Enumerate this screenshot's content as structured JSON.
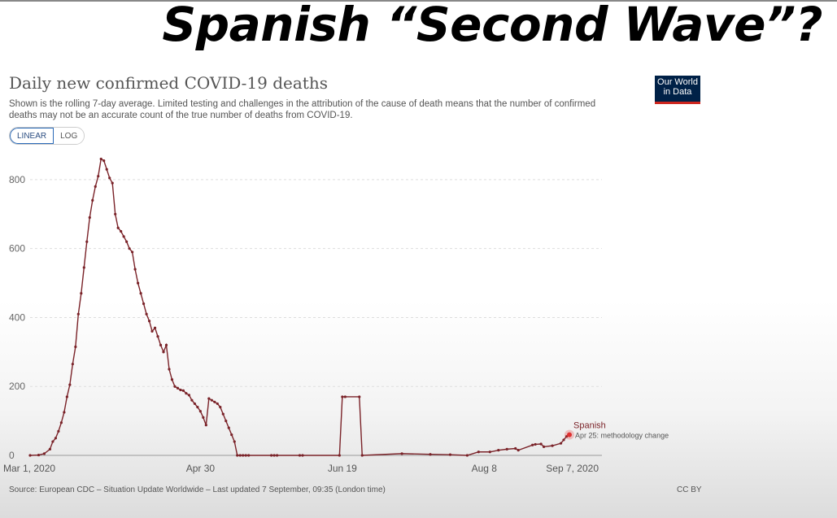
{
  "slide": {
    "title": "Spanish “Second Wave”?"
  },
  "logo": {
    "line1": "Our World",
    "line2": "in Data"
  },
  "scale_toggle": {
    "linear_label": "LINEAR",
    "log_label": "LOG",
    "selected": "LINEAR"
  },
  "colors": {
    "series": "#7a2228",
    "highlight": "#e03030",
    "grid": "#dddddd",
    "logo_bg": "#002147",
    "logo_bar": "#ce261e"
  },
  "footer": {
    "source": "Source: European CDC – Situation Update Worldwide – Last updated 7 September, 09:35 (London time)",
    "license": "CC BY"
  },
  "chart_data": {
    "type": "line",
    "title": "Daily new confirmed COVID-19 deaths",
    "subtitle": "Shown is the rolling 7-day average. Limited testing and challenges in the attribution of the cause of death means that the number of confirmed deaths may not be an accurate count of the true number of deaths from COVID-19.",
    "ylim": [
      0,
      880
    ],
    "yticks": [
      0,
      200,
      400,
      600,
      800
    ],
    "grid": true,
    "x_tick_labels": [
      "Mar 1, 2020",
      "Apr 30",
      "Jun 19",
      "Aug 8",
      "Sep 7, 2020"
    ],
    "series": [
      {
        "name": "Spanish",
        "annotation": "Apr 25: methodology change",
        "x": [
          "2020-03-01",
          "2020-03-04",
          "2020-03-06",
          "2020-03-08",
          "2020-03-09",
          "2020-03-10",
          "2020-03-11",
          "2020-03-12",
          "2020-03-13",
          "2020-03-14",
          "2020-03-15",
          "2020-03-16",
          "2020-03-17",
          "2020-03-18",
          "2020-03-19",
          "2020-03-20",
          "2020-03-21",
          "2020-03-22",
          "2020-03-23",
          "2020-03-24",
          "2020-03-25",
          "2020-03-26",
          "2020-03-27",
          "2020-03-28",
          "2020-03-29",
          "2020-03-30",
          "2020-03-31",
          "2020-04-01",
          "2020-04-02",
          "2020-04-03",
          "2020-04-04",
          "2020-04-05",
          "2020-04-06",
          "2020-04-07",
          "2020-04-08",
          "2020-04-09",
          "2020-04-10",
          "2020-04-11",
          "2020-04-12",
          "2020-04-13",
          "2020-04-14",
          "2020-04-15",
          "2020-04-16",
          "2020-04-17",
          "2020-04-18",
          "2020-04-19",
          "2020-04-20",
          "2020-04-21",
          "2020-04-22",
          "2020-04-23",
          "2020-04-24",
          "2020-04-25",
          "2020-04-26",
          "2020-04-27",
          "2020-04-28",
          "2020-04-29",
          "2020-04-30",
          "2020-05-01",
          "2020-05-02",
          "2020-05-03",
          "2020-05-04",
          "2020-05-05",
          "2020-05-06",
          "2020-05-07",
          "2020-05-08",
          "2020-05-09",
          "2020-05-10",
          "2020-05-11",
          "2020-05-12",
          "2020-05-13",
          "2020-05-14",
          "2020-05-15",
          "2020-05-16",
          "2020-05-17",
          "2020-05-25",
          "2020-05-26",
          "2020-05-27",
          "2020-06-04",
          "2020-06-05",
          "2020-06-18",
          "2020-06-19",
          "2020-06-20",
          "2020-06-25",
          "2020-06-26",
          "2020-07-10",
          "2020-07-20",
          "2020-07-27",
          "2020-08-02",
          "2020-08-06",
          "2020-08-10",
          "2020-08-13",
          "2020-08-16",
          "2020-08-19",
          "2020-08-20",
          "2020-08-25",
          "2020-08-26",
          "2020-08-28",
          "2020-08-29",
          "2020-09-01",
          "2020-09-04",
          "2020-09-05",
          "2020-09-06",
          "2020-09-07"
        ],
        "y": [
          0,
          1,
          5,
          18,
          40,
          50,
          70,
          95,
          125,
          170,
          205,
          265,
          315,
          410,
          470,
          545,
          620,
          690,
          740,
          780,
          810,
          860,
          855,
          830,
          805,
          790,
          700,
          660,
          650,
          635,
          620,
          600,
          590,
          540,
          500,
          470,
          440,
          410,
          390,
          360,
          370,
          345,
          320,
          300,
          320,
          250,
          220,
          200,
          195,
          190,
          188,
          180,
          175,
          160,
          150,
          140,
          128,
          110,
          88,
          165,
          160,
          155,
          150,
          140,
          120,
          100,
          80,
          60,
          40,
          0,
          0,
          0,
          0,
          0,
          0,
          0,
          0,
          0,
          0,
          0,
          170,
          170,
          170,
          0,
          5,
          3,
          2,
          0,
          10,
          10,
          15,
          18,
          20,
          15,
          30,
          32,
          33,
          25,
          28,
          35,
          45,
          55,
          60
        ]
      }
    ]
  }
}
